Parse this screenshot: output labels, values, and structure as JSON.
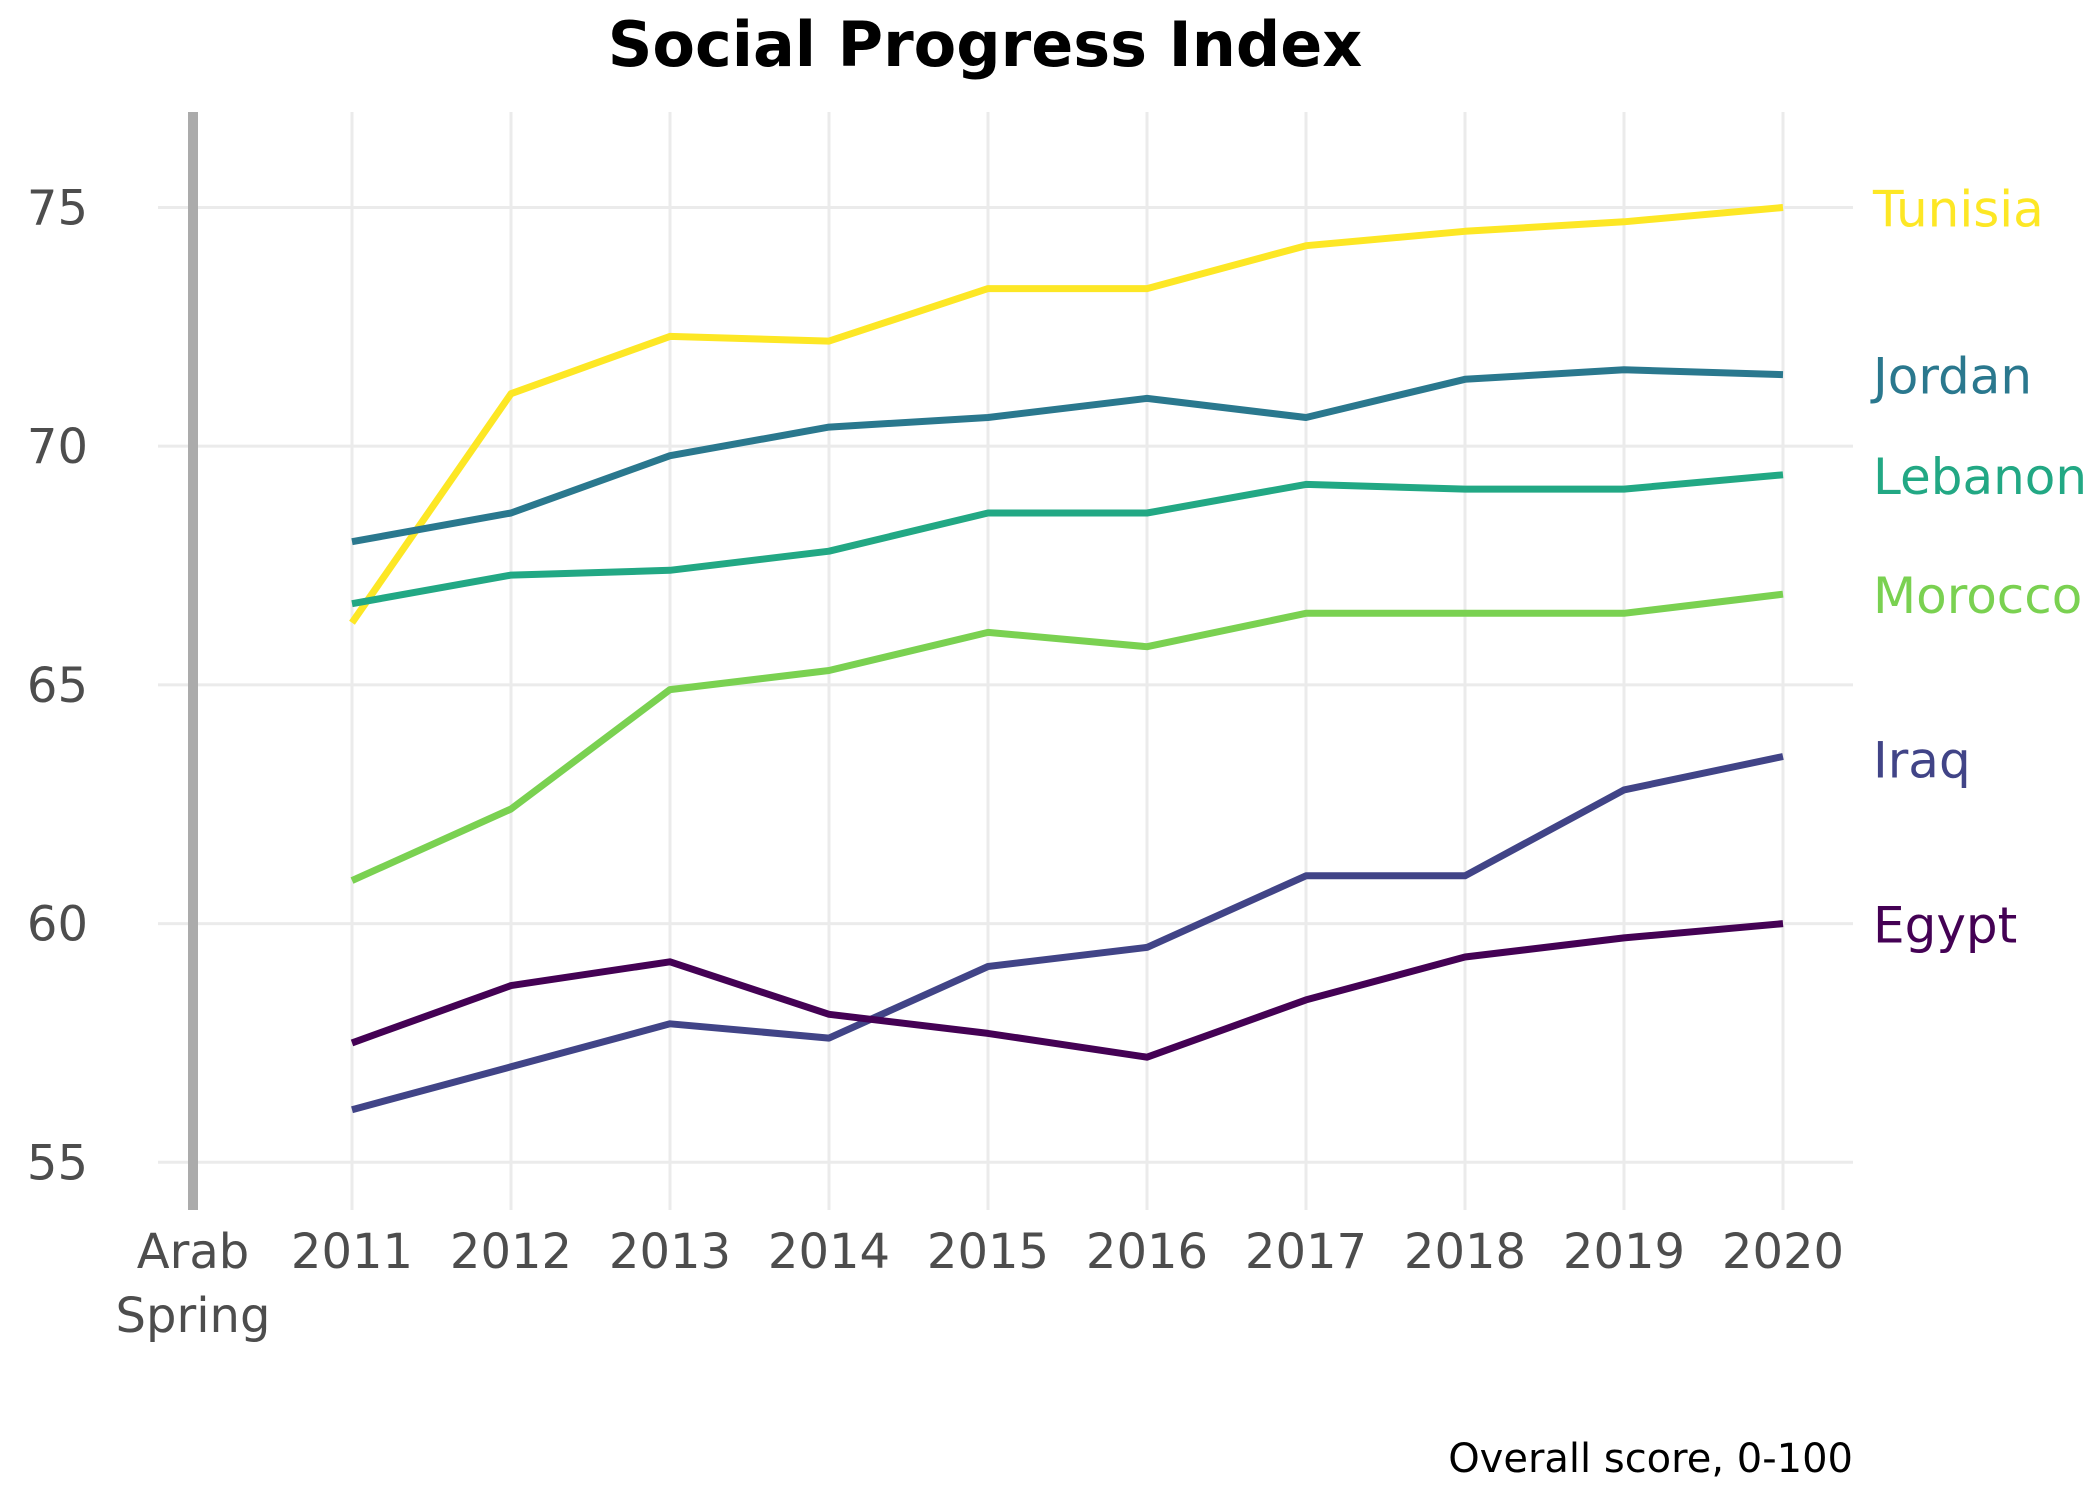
{
  "chart_data": {
    "type": "line",
    "title": "Social Progress Index",
    "caption": "Overall score, 0-100",
    "x_categories": [
      "Arab Spring",
      "2011",
      "2012",
      "2013",
      "2014",
      "2015",
      "2016",
      "2017",
      "2018",
      "2019",
      "2020"
    ],
    "x_tick_lines": [
      [
        "Arab",
        "Spring"
      ],
      [
        "2011"
      ],
      [
        "2012"
      ],
      [
        "2013"
      ],
      [
        "2014"
      ],
      [
        "2015"
      ],
      [
        "2016"
      ],
      [
        "2017"
      ],
      [
        "2018"
      ],
      [
        "2019"
      ],
      [
        "2020"
      ]
    ],
    "x": [
      2011,
      2012,
      2013,
      2014,
      2015,
      2016,
      2017,
      2018,
      2019,
      2020
    ],
    "ylim": [
      54,
      77
    ],
    "y_ticks": [
      55,
      60,
      65,
      70,
      75
    ],
    "grid": true,
    "marker_line": "Arab Spring",
    "legend": "direct labels at right",
    "series": [
      {
        "name": "Tunisia",
        "color": "#fde725",
        "values": [
          66.3,
          71.1,
          72.3,
          72.2,
          73.3,
          73.3,
          74.2,
          74.5,
          74.7,
          75.0
        ]
      },
      {
        "name": "Jordan",
        "color": "#2a788e",
        "values": [
          68.0,
          68.6,
          69.8,
          70.4,
          70.6,
          71.0,
          70.6,
          71.4,
          71.6,
          71.5
        ]
      },
      {
        "name": "Lebanon",
        "color": "#22a884",
        "values": [
          66.7,
          67.3,
          67.4,
          67.8,
          68.6,
          68.6,
          69.2,
          69.1,
          69.1,
          69.4
        ]
      },
      {
        "name": "Morocco",
        "color": "#7ad151",
        "values": [
          60.9,
          62.4,
          64.9,
          65.3,
          66.1,
          65.8,
          66.5,
          66.5,
          66.5,
          66.9
        ]
      },
      {
        "name": "Iraq",
        "color": "#414487",
        "values": [
          56.1,
          57.0,
          57.9,
          57.6,
          59.1,
          59.5,
          61.0,
          61.0,
          62.8,
          63.5
        ]
      },
      {
        "name": "Egypt",
        "color": "#440154",
        "values": [
          57.5,
          58.7,
          59.2,
          58.1,
          57.7,
          57.2,
          58.4,
          59.3,
          59.7,
          60.0
        ]
      }
    ]
  }
}
